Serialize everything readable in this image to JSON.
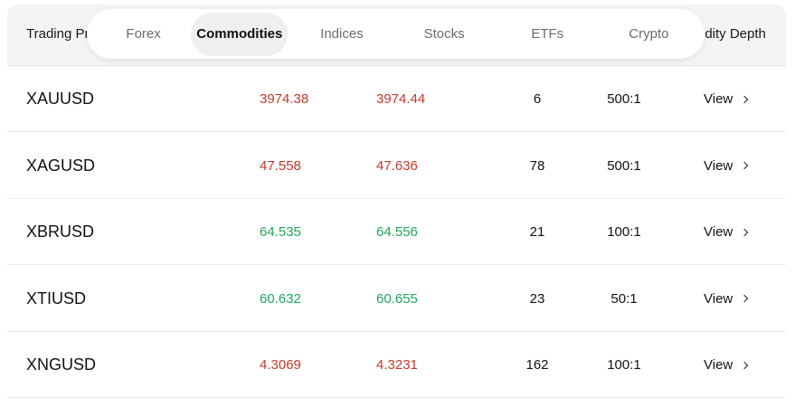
{
  "header": {
    "first_col_label": "Trading Pr",
    "last_col_label": "idity Depth"
  },
  "tabs": [
    {
      "label": "Forex",
      "active": false
    },
    {
      "label": "Commodities",
      "active": true
    },
    {
      "label": "Indices",
      "active": false
    },
    {
      "label": "Stocks",
      "active": false
    },
    {
      "label": "ETFs",
      "active": false
    },
    {
      "label": "Crypto",
      "active": false
    }
  ],
  "colors": {
    "down": "#c0392b",
    "up": "#1fa55b"
  },
  "rows": [
    {
      "symbol": "XAUUSD",
      "bid": "3974.38",
      "ask": "3974.44",
      "direction": "down",
      "spread": "6",
      "leverage": "500:1",
      "action": "View"
    },
    {
      "symbol": "XAGUSD",
      "bid": "47.558",
      "ask": "47.636",
      "direction": "down",
      "spread": "78",
      "leverage": "500:1",
      "action": "View"
    },
    {
      "symbol": "XBRUSD",
      "bid": "64.535",
      "ask": "64.556",
      "direction": "up",
      "spread": "21",
      "leverage": "100:1",
      "action": "View"
    },
    {
      "symbol": "XTIUSD",
      "bid": "60.632",
      "ask": "60.655",
      "direction": "up",
      "spread": "23",
      "leverage": "50:1",
      "action": "View"
    },
    {
      "symbol": "XNGUSD",
      "bid": "4.3069",
      "ask": "4.3231",
      "direction": "down",
      "spread": "162",
      "leverage": "100:1",
      "action": "View"
    }
  ]
}
